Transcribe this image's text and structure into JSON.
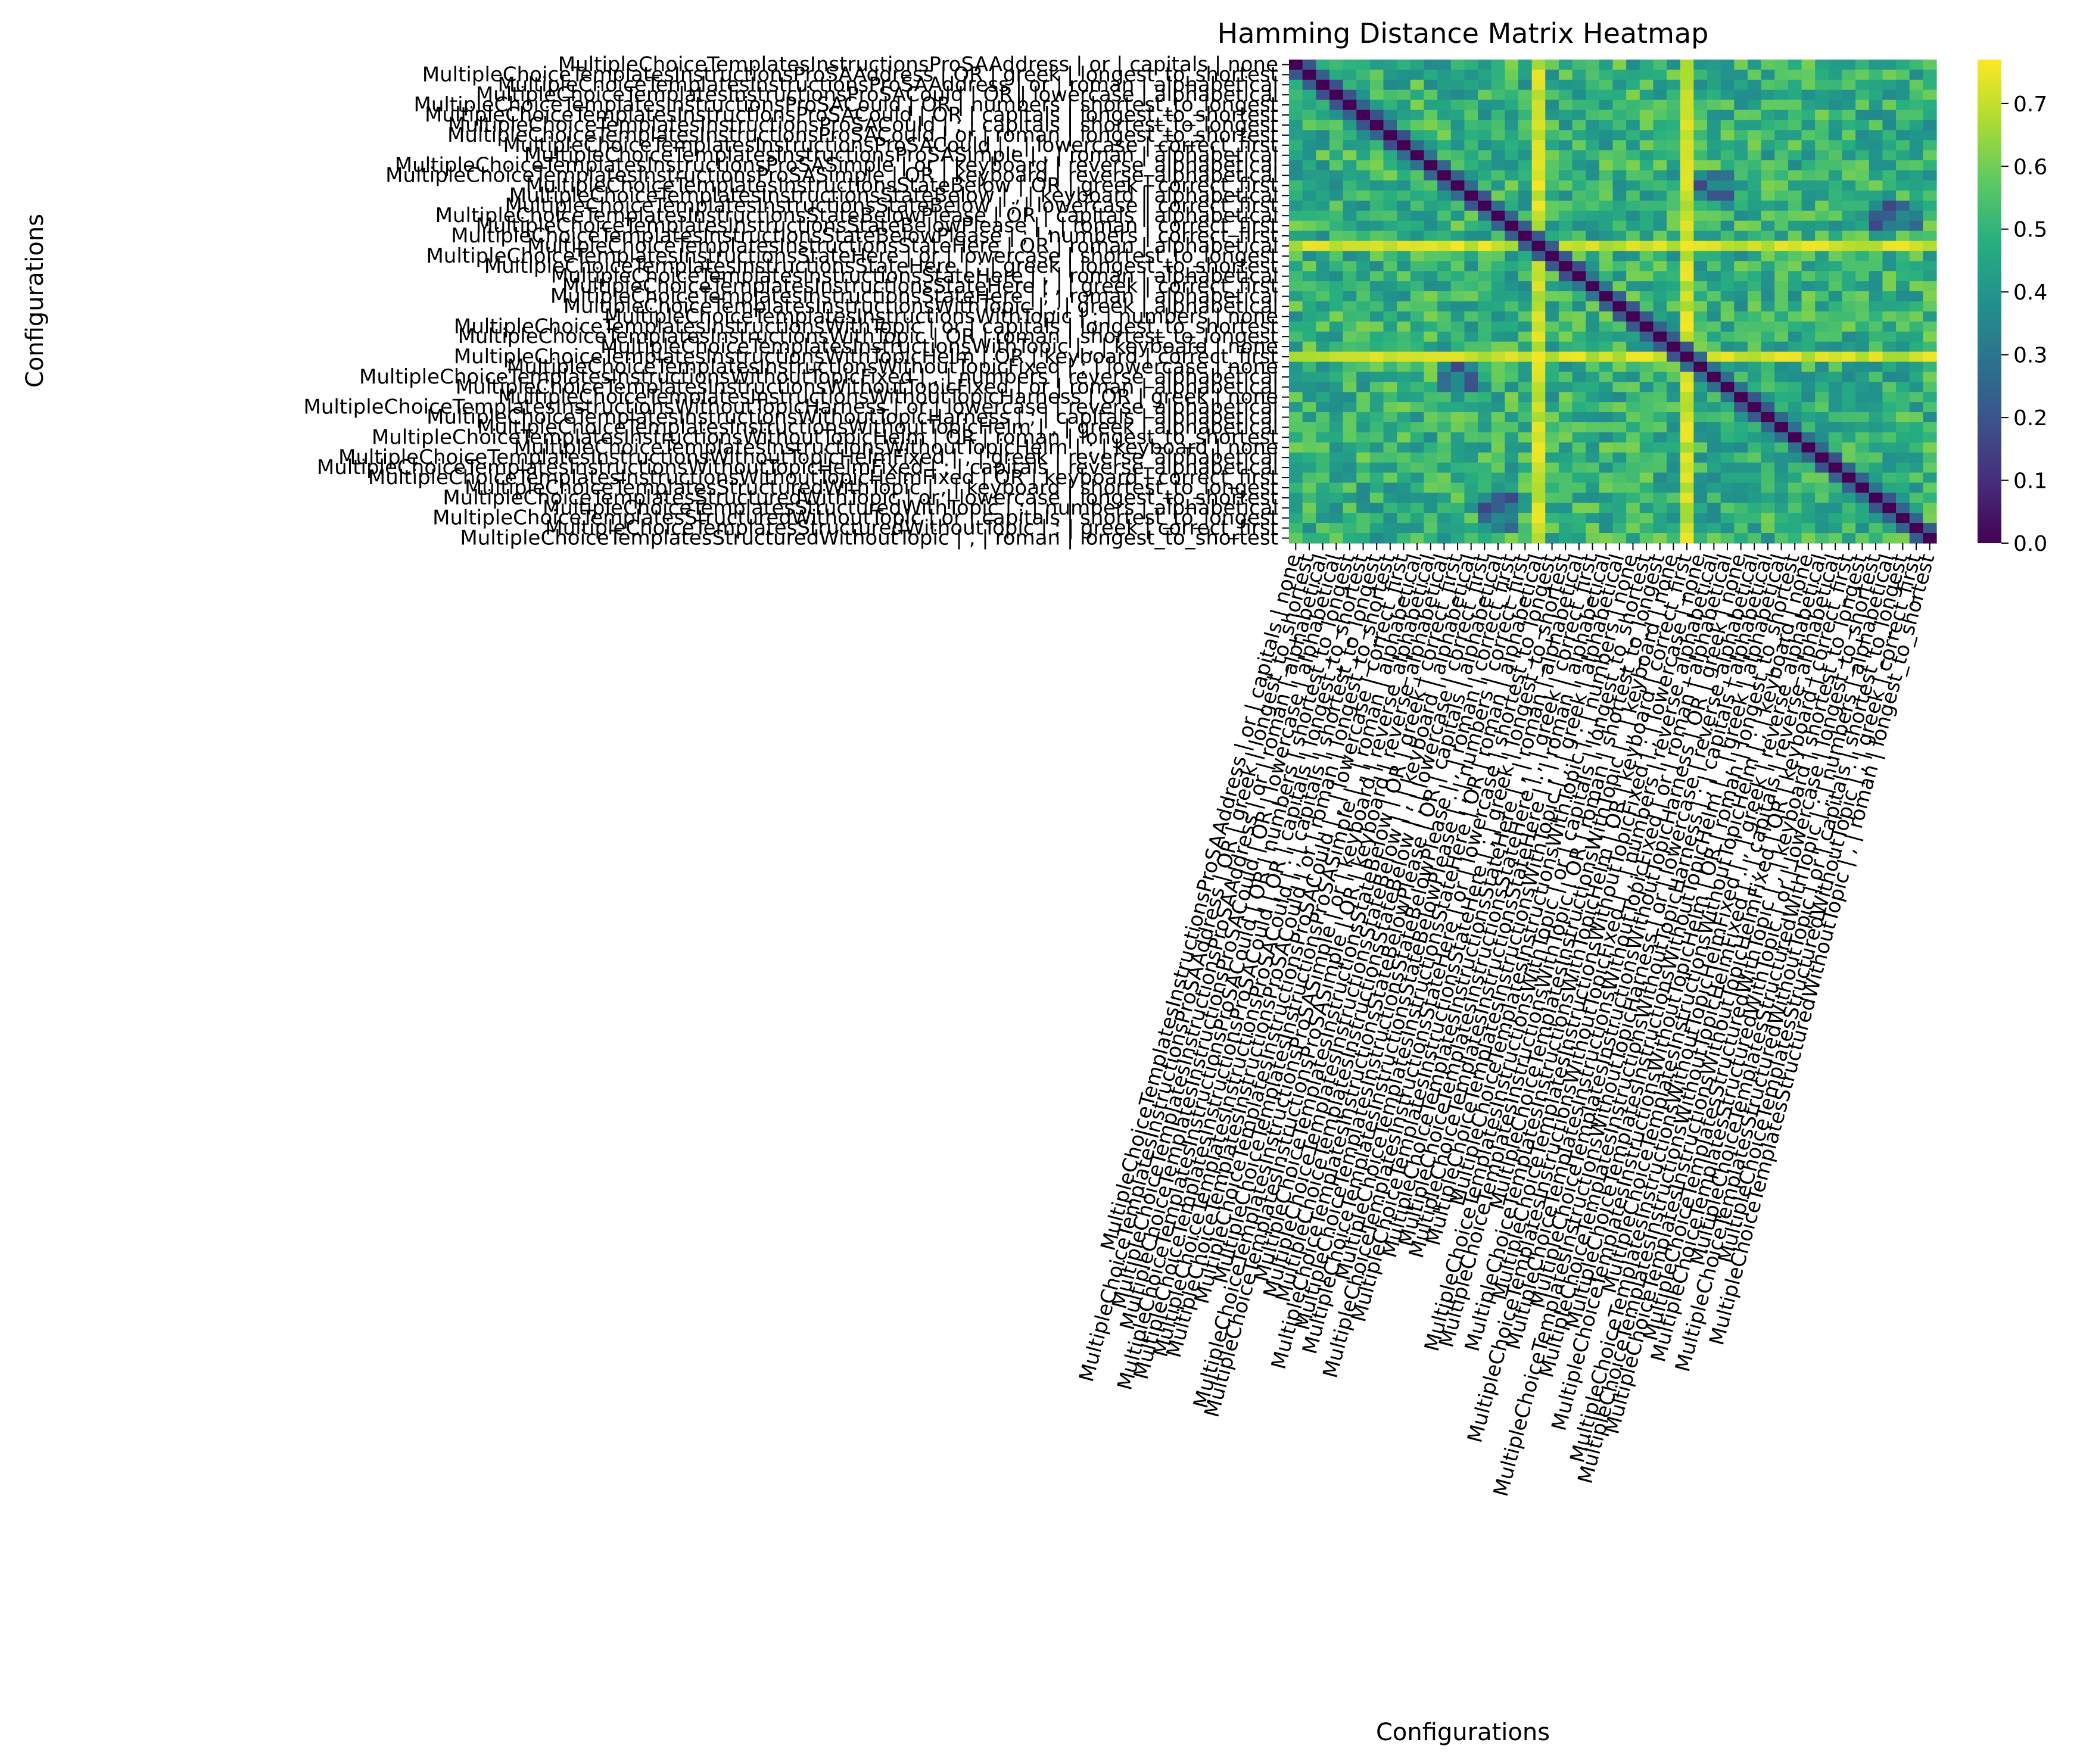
{
  "chart_data": {
    "type": "heatmap",
    "title": "Hamming Distance Matrix Heatmap",
    "xlabel": "Configurations",
    "ylabel": "Configurations",
    "colormap": "viridis",
    "colorbar": {
      "range": [
        0.0,
        0.77
      ],
      "ticks": [
        0.0,
        0.1,
        0.2,
        0.3,
        0.4,
        0.5,
        0.6,
        0.7
      ]
    },
    "labels": [
      "MultipleChoiceTemplatesInstructionsProSAAddress | or | capitals | none",
      "MultipleChoiceTemplatesInstructionsProSAAddress | OR | greek | longest_to_shortest",
      "MultipleChoiceTemplatesInstructionsProSAAddress | or | roman | alphabetical",
      "MultipleChoiceTemplatesInstructionsProSACould | OR | lowercase | alphabetical",
      "MultipleChoiceTemplatesInstructionsProSACould | OR | numbers | shortest_to_longest",
      "MultipleChoiceTemplatesInstructionsProSACould | OR | capitals | longest_to_shortest",
      "MultipleChoiceTemplatesInstructionsProSACould | ; | capitals | shortest_to_longest",
      "MultipleChoiceTemplatesInstructionsProSACould | or | roman | longest_to_shortest",
      "MultipleChoiceTemplatesInstructionsProSACould | , | lowercase | correct_first",
      "MultipleChoiceTemplatesInstructionsProSASimple | , | roman | alphabetical",
      "MultipleChoiceTemplatesInstructionsProSASimple | or | keyboard | reverse_alphabetical",
      "MultipleChoiceTemplatesInstructionsProSASimple | OR | keyboard | reverse_alphabetical",
      "MultipleChoiceTemplatesInstructionsStateBelow | OR | greek | correct_first",
      "MultipleChoiceTemplatesInstructionsStateBelow | , | keyboard | alphabetical",
      "MultipleChoiceTemplatesInstructionsStateBelow | ; | lowercase | correct_first",
      "MultipleChoiceTemplatesInstructionsStateBelowPlease | OR | capitals | alphabetical",
      "MultipleChoiceTemplatesInstructionsStateBelowPlease | , | roman | correct_first",
      "MultipleChoiceTemplatesInstructionsStateBelowPlease | ; | numbers | correct_first",
      "MultipleChoiceTemplatesInstructionsStateHere | OR | roman | alphabetical",
      "MultipleChoiceTemplatesInstructionsStateHere | or | lowercase | shortest_to_longest",
      "MultipleChoiceTemplatesInstructionsStateHere | ; | greek | longest_to_shortest",
      "MultipleChoiceTemplatesInstructionsStateHere | , | roman | alphabetical",
      "MultipleChoiceTemplatesInstructionsStateHere | , | greek | correct_first",
      "MultipleChoiceTemplatesInstructionsStateHere | ; | roman | alphabetical",
      "MultipleChoiceTemplatesInstructionsWithTopic | , | greek | alphabetical",
      "MultipleChoiceTemplatesInstructionsWithTopic | ; | numbers | none",
      "MultipleChoiceTemplatesInstructionsWithTopic | or | capitals | longest_to_shortest",
      "MultipleChoiceTemplatesInstructionsWithTopic | OR | roman | shortest_to_longest",
      "MultipleChoiceTemplatesInstructionsWithTopic | , | keyboard | none",
      "MultipleChoiceTemplatesInstructionsWithTopicHelm | OR | keyboard | correct_first",
      "MultipleChoiceTemplatesInstructionsWithoutTopicFixed | ; | lowercase | none",
      "MultipleChoiceTemplatesInstructionsWithoutTopicFixed | , | numbers | reverse_alphabetical",
      "MultipleChoiceTemplatesInstructionsWithoutTopicFixed | or | roman | alphabetical",
      "MultipleChoiceTemplatesInstructionsWithoutTopicHarness | OR | greek | none",
      "MultipleChoiceTemplatesInstructionsWithoutTopicHarness | or | lowercase | reverse_alphabetical",
      "MultipleChoiceTemplatesInstructionsWithoutTopicHarness | ; | capitals | alphabetical",
      "MultipleChoiceTemplatesInstructionsWithoutTopicHelm | , | greek | alphabetical",
      "MultipleChoiceTemplatesInstructionsWithoutTopicHelm | OR | roman | longest_to_shortest",
      "MultipleChoiceTemplatesInstructionsWithoutTopicHelm | ; | keyboard | none",
      "MultipleChoiceTemplatesInstructionsWithoutTopicHelmFixed | , | greek | reverse_alphabetical",
      "MultipleChoiceTemplatesInstructionsWithoutTopicHelmFixed | ; | capitals | reverse_alphabetical",
      "MultipleChoiceTemplatesInstructionsWithoutTopicHelmFixed | OR | keyboard | correct_first",
      "MultipleChoiceTemplatesStructuredWithTopic | , | keyboard | shortest_to_longest",
      "MultipleChoiceTemplatesStructuredWithTopic | or | lowercase | longest_to_shortest",
      "MultipleChoiceTemplatesStructuredWithTopic | ; | numbers | alphabetical",
      "MultipleChoiceTemplatesStructuredWithoutTopic | or | capitals | shortest_to_longest",
      "MultipleChoiceTemplatesStructuredWithoutTopic | ; | greek | correct_first",
      "MultipleChoiceTemplatesStructuredWithoutTopic | , | roman | longest_to_shortest"
    ],
    "hot_rows": [
      18,
      29
    ],
    "hot_cols": [
      18,
      29
    ],
    "dark_blocks": [
      [
        11,
        13,
        30,
        32
      ],
      [
        14,
        16,
        43,
        46
      ]
    ],
    "cell_seed": 7
  }
}
